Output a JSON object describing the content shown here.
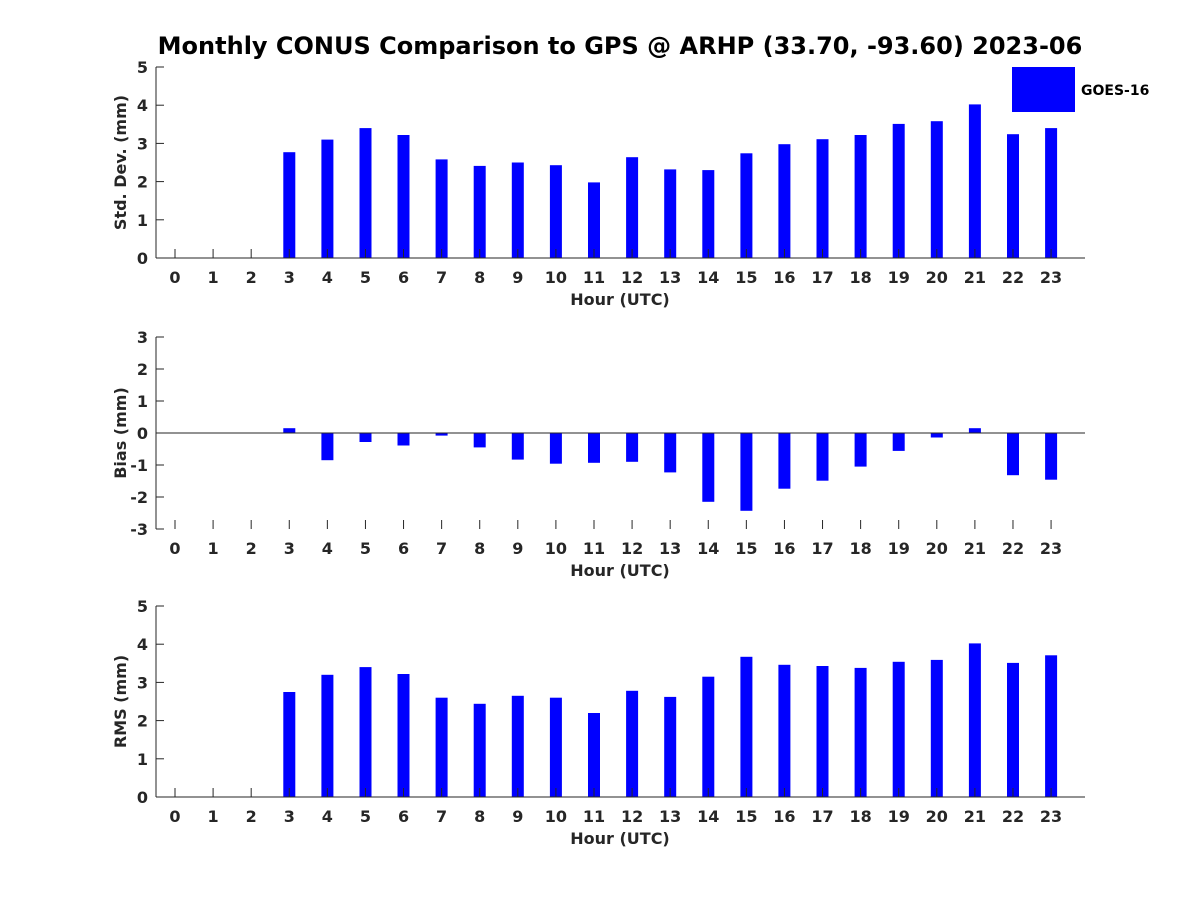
{
  "chart_data": {
    "title": "Monthly CONUS Comparison to GPS @ ARHP (33.70, -93.60) 2023-06",
    "legend": {
      "label": "GOES-16",
      "placement": "top-right",
      "color": "#0000ff"
    },
    "bar_color": "#0000ff",
    "panels": [
      {
        "type": "bar",
        "ylabel": "Std. Dev. (mm)",
        "xlabel": "Hour (UTC)",
        "ylim": [
          0,
          5
        ],
        "yticks": [
          0,
          1,
          2,
          3,
          4,
          5
        ],
        "categories": [
          0,
          1,
          2,
          3,
          4,
          5,
          6,
          7,
          8,
          9,
          10,
          11,
          12,
          13,
          14,
          15,
          16,
          17,
          18,
          19,
          20,
          21,
          22,
          23
        ],
        "series": [
          {
            "name": "GOES-16",
            "values": [
              null,
              null,
              null,
              2.77,
              3.1,
              3.4,
              3.22,
              2.58,
              2.41,
              2.5,
              2.43,
              1.98,
              2.64,
              2.32,
              2.3,
              2.74,
              2.98,
              3.11,
              3.22,
              3.51,
              3.58,
              4.02,
              3.24,
              3.4
            ]
          }
        ]
      },
      {
        "type": "bar",
        "ylabel": "Bias (mm)",
        "xlabel": "Hour (UTC)",
        "ylim": [
          -3,
          3
        ],
        "yticks": [
          -3,
          -2,
          -1,
          0,
          1,
          2,
          3
        ],
        "categories": [
          0,
          1,
          2,
          3,
          4,
          5,
          6,
          7,
          8,
          9,
          10,
          11,
          12,
          13,
          14,
          15,
          16,
          17,
          18,
          19,
          20,
          21,
          22,
          23
        ],
        "series": [
          {
            "name": "GOES-16",
            "values": [
              null,
              null,
              null,
              0.15,
              -0.85,
              -0.28,
              -0.39,
              -0.08,
              -0.45,
              -0.83,
              -0.96,
              -0.93,
              -0.9,
              -1.23,
              -2.15,
              -2.43,
              -1.74,
              -1.49,
              -1.05,
              -0.56,
              -0.14,
              0.15,
              -1.32,
              -1.46
            ]
          }
        ]
      },
      {
        "type": "bar",
        "ylabel": "RMS (mm)",
        "xlabel": "Hour (UTC)",
        "ylim": [
          0,
          5
        ],
        "yticks": [
          0,
          1,
          2,
          3,
          4,
          5
        ],
        "categories": [
          0,
          1,
          2,
          3,
          4,
          5,
          6,
          7,
          8,
          9,
          10,
          11,
          12,
          13,
          14,
          15,
          16,
          17,
          18,
          19,
          20,
          21,
          22,
          23
        ],
        "series": [
          {
            "name": "GOES-16",
            "values": [
              null,
              null,
              null,
              2.75,
              3.2,
              3.4,
              3.22,
              2.6,
              2.44,
              2.65,
              2.6,
              2.2,
              2.78,
              2.62,
              3.15,
              3.67,
              3.46,
              3.43,
              3.38,
              3.54,
              3.59,
              4.02,
              3.51,
              3.71
            ]
          }
        ]
      }
    ]
  }
}
